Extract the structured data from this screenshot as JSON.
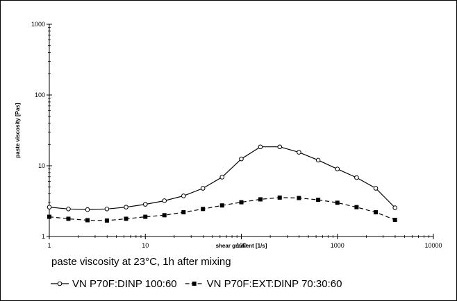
{
  "chart_data": {
    "type": "line",
    "xlabel": "shear gradient  [1/s]",
    "ylabel": "paste viscosity  [Pas]",
    "x_scale": "log",
    "y_scale": "log",
    "xlim": [
      1,
      10000
    ],
    "ylim": [
      1,
      1000
    ],
    "x_ticks": [
      "1",
      "10",
      "100",
      "1000",
      "10000"
    ],
    "y_ticks": [
      "1",
      "10",
      "100",
      "1000"
    ],
    "grid": false,
    "caption": "paste viscosity at 23°C, 1h after mixing",
    "legend_position": "bottom",
    "series": [
      {
        "name": "VN P70F:DINP  100:60",
        "marker": "open-circle",
        "line": "solid",
        "color": "#000000",
        "x": [
          1,
          1.58,
          2.5,
          3.98,
          6.3,
          10,
          15.8,
          25,
          39.8,
          63,
          100,
          158,
          251,
          398,
          631,
          1000,
          1585,
          2512,
          3981
        ],
        "y": [
          2.6,
          2.45,
          2.4,
          2.45,
          2.6,
          2.85,
          3.2,
          3.75,
          4.8,
          6.9,
          12.5,
          18.5,
          18.5,
          15.5,
          12.0,
          9.0,
          6.8,
          4.8,
          2.55
        ]
      },
      {
        "name": "VN P70F:EXT:DINP  70:30:60",
        "marker": "filled-square",
        "line": "dashed",
        "color": "#000000",
        "x": [
          1,
          1.58,
          2.5,
          3.98,
          6.3,
          10,
          15.8,
          25,
          39.8,
          63,
          100,
          158,
          251,
          398,
          631,
          1000,
          1585,
          2512,
          3981
        ],
        "y": [
          1.9,
          1.78,
          1.7,
          1.68,
          1.78,
          1.9,
          2.0,
          2.2,
          2.45,
          2.75,
          3.05,
          3.35,
          3.55,
          3.5,
          3.3,
          3.0,
          2.6,
          2.2,
          1.72
        ]
      }
    ]
  }
}
